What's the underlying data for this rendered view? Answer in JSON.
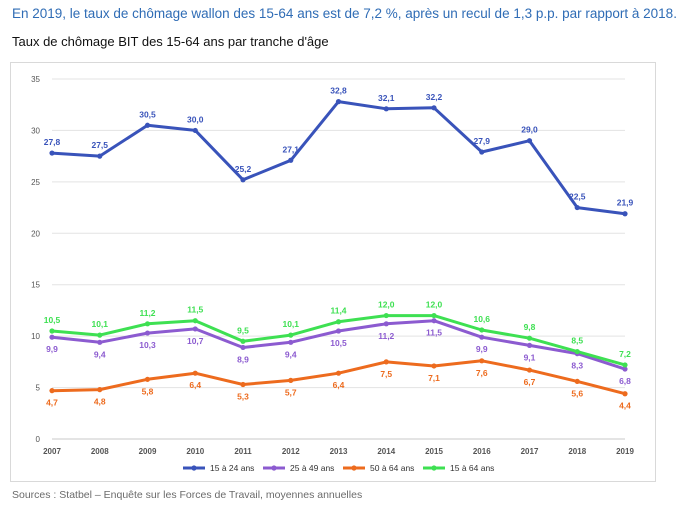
{
  "page": {
    "headline": "En 2019, le taux de chômage wallon des 15-64 ans est de 7,2 %, après un recul de 1,3 p.p. par rapport à 2018.",
    "subtitle": "Taux de chômage BIT des 15-64 ans par tranche d'âge",
    "source": "Sources : Statbel – Enquête sur les Forces de Travail, moyennes annuelles"
  },
  "chart_data": {
    "type": "line",
    "title": "Taux de chômage BIT des 15-64 ans par tranche d'âge",
    "xlabel": "",
    "ylabel": "",
    "ylim": [
      0,
      35
    ],
    "yticks": [
      0,
      5,
      10,
      15,
      20,
      25,
      30,
      35
    ],
    "grid": true,
    "legend": "bottom",
    "x": [
      "2007",
      "2008",
      "2009",
      "2010",
      "2011",
      "2012",
      "2013",
      "2014",
      "2015",
      "2016",
      "2017",
      "2018",
      "2019"
    ],
    "series": [
      {
        "name": "15 à 24 ans",
        "color": "#3953ba",
        "values": [
          27.8,
          27.5,
          30.5,
          30.0,
          25.2,
          27.1,
          32.8,
          32.1,
          32.2,
          27.9,
          29.0,
          22.5,
          21.9
        ],
        "labels": [
          "27,8",
          "27,5",
          "30,5",
          "30,0",
          "25,2",
          "27,1",
          "32,8",
          "32,1",
          "32,2",
          "27,9",
          "29,0",
          "22,5",
          "21,9"
        ],
        "label_pos": "above"
      },
      {
        "name": "25 à 49 ans",
        "color": "#8c5bd0",
        "values": [
          9.9,
          9.4,
          10.3,
          10.7,
          8.9,
          9.4,
          10.5,
          11.2,
          11.5,
          9.9,
          9.1,
          8.3,
          6.8
        ],
        "labels": [
          "9,9",
          "9,4",
          "10,3",
          "10,7",
          "8,9",
          "9,4",
          "10,5",
          "11,2",
          "11,5",
          "9,9",
          "9,1",
          "8,3",
          "6,8"
        ],
        "label_pos": "below"
      },
      {
        "name": "50 à 64 ans",
        "color": "#ed6b1e",
        "values": [
          4.7,
          4.8,
          5.8,
          6.4,
          5.3,
          5.7,
          6.4,
          7.5,
          7.1,
          7.6,
          6.7,
          5.6,
          4.4
        ],
        "labels": [
          "4,7",
          "4,8",
          "5,8",
          "6,4",
          "5,3",
          "5,7",
          "6,4",
          "7,5",
          "7,1",
          "7,6",
          "6,7",
          "5,6",
          "4,4"
        ],
        "label_pos": "below"
      },
      {
        "name": "15 à 64 ans",
        "color": "#3ee052",
        "values": [
          10.5,
          10.1,
          11.2,
          11.5,
          9.5,
          10.1,
          11.4,
          12.0,
          12.0,
          10.6,
          9.8,
          8.5,
          7.2
        ],
        "labels": [
          "10,5",
          "10,1",
          "11,2",
          "11,5",
          "9,5",
          "10,1",
          "11,4",
          "12,0",
          "12,0",
          "10,6",
          "9,8",
          "8,5",
          "7,2"
        ],
        "label_pos": "above"
      }
    ]
  }
}
